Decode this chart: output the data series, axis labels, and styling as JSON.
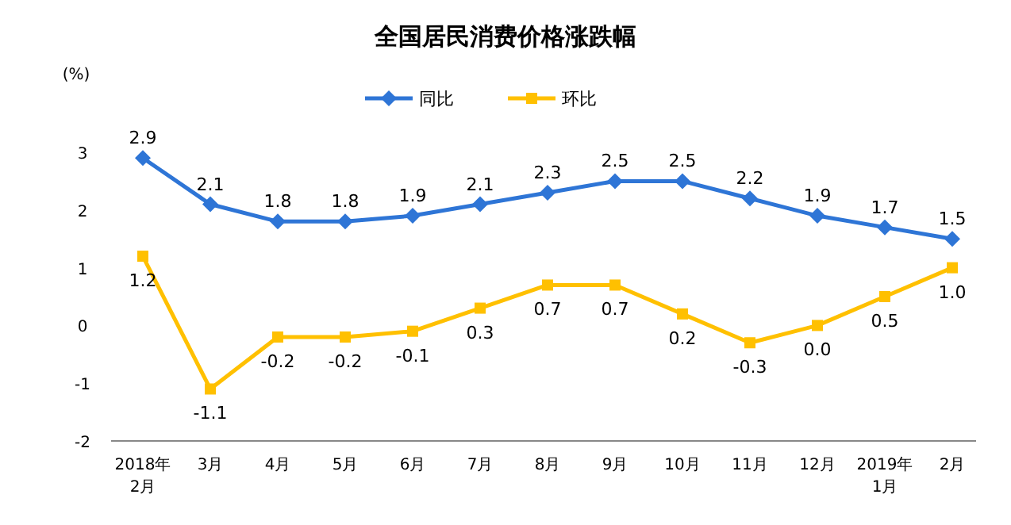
{
  "chart_data": {
    "type": "line",
    "title": "全国居民消费价格涨跌幅",
    "ylabel": "(%)",
    "categories": [
      "2018年 2月",
      "3月",
      "4月",
      "5月",
      "6月",
      "7月",
      "8月",
      "9月",
      "10月",
      "11月",
      "12月",
      "2019年 1月",
      "2月"
    ],
    "series": [
      {
        "name": "同比",
        "color": "#2e75d6",
        "marker": "diamond",
        "values": [
          2.9,
          2.1,
          1.8,
          1.8,
          1.9,
          2.1,
          2.3,
          2.5,
          2.5,
          2.2,
          1.9,
          1.7,
          1.5
        ],
        "value_labels": [
          "2.9",
          "2.1",
          "1.8",
          "1.8",
          "1.9",
          "2.1",
          "2.3",
          "2.5",
          "2.5",
          "2.2",
          "1.9",
          "1.7",
          "1.5"
        ]
      },
      {
        "name": "环比",
        "color": "#ffc000",
        "marker": "square",
        "values": [
          1.2,
          -1.1,
          -0.2,
          -0.2,
          -0.1,
          0.3,
          0.7,
          0.7,
          0.2,
          -0.3,
          0.0,
          0.5,
          1.0
        ],
        "value_labels": [
          "1.2",
          "-1.1",
          "-0.2",
          "-0.2",
          "-0.1",
          "0.3",
          "0.7",
          "0.7",
          "0.2",
          "-0.3",
          "0.0",
          "0.5",
          "1.0"
        ]
      }
    ],
    "ylim": [
      -2,
      3
    ],
    "yticks": [
      -2,
      -1,
      0,
      1,
      2,
      3
    ],
    "legend": "top",
    "grid": false
  }
}
